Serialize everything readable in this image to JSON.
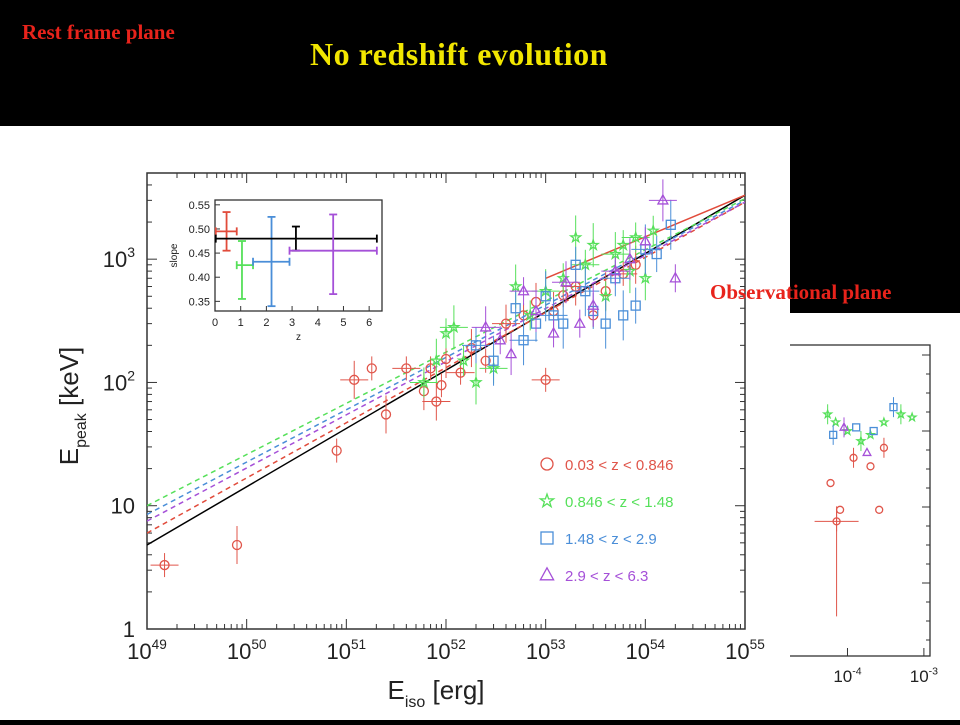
{
  "slide": {
    "title": "No redshift  evolution",
    "left_label": "Rest frame plane",
    "right_label": "Observational  plane",
    "colors": {
      "background": "#000000",
      "title": "#f2e600",
      "labels": "#e8231b"
    }
  },
  "chart_data": [
    {
      "type": "scatter",
      "scale": "log-log",
      "xlabel": "E_iso [erg]",
      "ylabel": "E_peak [keV]",
      "xlim": [
        1e+49,
        1e+55
      ],
      "ylim": [
        1,
        5000
      ],
      "x_ticks": [
        "10^49",
        "10^50",
        "10^51",
        "10^52",
        "10^53",
        "10^54",
        "10^55"
      ],
      "y_ticks": [
        "1",
        "10",
        "10^2",
        "10^3"
      ],
      "legend_position": "lower-right",
      "series": [
        {
          "name": "0.03 < z < 0.846",
          "marker": "circle",
          "color": "#e0554a",
          "points": [
            [
              1.5e+49,
              3.3
            ],
            [
              8e+49,
              4.8
            ],
            [
              8e+50,
              28
            ],
            [
              1.2e+51,
              105
            ],
            [
              1.8e+51,
              130
            ],
            [
              2.5e+51,
              55
            ],
            [
              4e+51,
              130
            ],
            [
              6e+51,
              85
            ],
            [
              7e+51,
              130
            ],
            [
              8e+51,
              70
            ],
            [
              9e+51,
              95
            ],
            [
              1e+52,
              155
            ],
            [
              1.4e+52,
              120
            ],
            [
              1.8e+52,
              190
            ],
            [
              2.5e+52,
              150
            ],
            [
              4e+52,
              300
            ],
            [
              6e+52,
              350
            ],
            [
              8e+52,
              450
            ],
            [
              1e+53,
              105
            ],
            [
              1.2e+53,
              380
            ],
            [
              1.5e+53,
              510
            ],
            [
              2e+53,
              600
            ],
            [
              3e+53,
              350
            ],
            [
              4e+53,
              550
            ],
            [
              6e+53,
              760
            ],
            [
              8e+53,
              900
            ]
          ]
        },
        {
          "name": "0.846 < z < 1.48",
          "marker": "star",
          "color": "#56e05a",
          "points": [
            [
              6e+51,
              100
            ],
            [
              8e+51,
              150
            ],
            [
              1e+52,
              250
            ],
            [
              1.2e+52,
              280
            ],
            [
              1.5e+52,
              150
            ],
            [
              2e+52,
              100
            ],
            [
              3e+52,
              130
            ],
            [
              5e+52,
              600
            ],
            [
              7e+52,
              350
            ],
            [
              1e+53,
              550
            ],
            [
              1.5e+53,
              700
            ],
            [
              2e+53,
              1500
            ],
            [
              2.5e+53,
              900
            ],
            [
              3e+53,
              1300
            ],
            [
              4e+53,
              500
            ],
            [
              5e+53,
              1100
            ],
            [
              6e+53,
              1300
            ],
            [
              7e+53,
              800
            ],
            [
              8e+53,
              1500
            ],
            [
              1e+54,
              700
            ],
            [
              1.2e+54,
              1700
            ]
          ]
        },
        {
          "name": "1.48 < z < 2.9",
          "marker": "square",
          "color": "#4a8ed8",
          "points": [
            [
              2e+52,
              200
            ],
            [
              3e+52,
              150
            ],
            [
              5e+52,
              400
            ],
            [
              6e+52,
              220
            ],
            [
              8e+52,
              300
            ],
            [
              1e+53,
              500
            ],
            [
              1.2e+53,
              350
            ],
            [
              1.5e+53,
              300
            ],
            [
              2e+53,
              900
            ],
            [
              2.5e+53,
              550
            ],
            [
              3e+53,
              380
            ],
            [
              4e+53,
              300
            ],
            [
              5e+53,
              700
            ],
            [
              6e+53,
              350
            ],
            [
              8e+53,
              420
            ],
            [
              1e+54,
              1200
            ],
            [
              1.3e+54,
              1100
            ],
            [
              1.8e+54,
              1900
            ]
          ]
        },
        {
          "name": "2.9 < z < 6.3",
          "marker": "triangle",
          "color": "#a550d8",
          "points": [
            [
              2.5e+52,
              280
            ],
            [
              3.5e+52,
              220
            ],
            [
              4.5e+52,
              170
            ],
            [
              6e+52,
              550
            ],
            [
              8e+52,
              380
            ],
            [
              1.2e+53,
              250
            ],
            [
              1.6e+53,
              650
            ],
            [
              2.2e+53,
              300
            ],
            [
              3e+53,
              420
            ],
            [
              5e+53,
              800
            ],
            [
              7e+53,
              1000
            ],
            [
              1e+54,
              1400
            ],
            [
              1.5e+54,
              3000
            ],
            [
              2e+54,
              700
            ]
          ]
        }
      ],
      "fit_lines": [
        {
          "color": "#000000",
          "style": "solid",
          "points": [
            [
              1e+49,
              4.8
            ],
            [
              1e+55,
              3300
            ]
          ]
        },
        {
          "color": "#e14b3b",
          "style": "solid",
          "points": [
            [
              1e+53,
              700
            ],
            [
              1e+55,
              3300
            ]
          ]
        },
        {
          "color": "#e14b3b",
          "style": "dashed",
          "points": [
            [
              1e+49,
              6.0
            ],
            [
              1e+55,
              2900
            ]
          ]
        },
        {
          "color": "#a550d8",
          "style": "dashed",
          "points": [
            [
              1e+49,
              7.5
            ],
            [
              1e+55,
              2900
            ]
          ]
        },
        {
          "color": "#4a8ed8",
          "style": "dashed",
          "points": [
            [
              1e+49,
              8.5
            ],
            [
              1e+55,
              3000
            ]
          ]
        },
        {
          "color": "#56e05a",
          "style": "dashed",
          "points": [
            [
              1e+49,
              10
            ],
            [
              1e+55,
              3100
            ]
          ]
        }
      ]
    },
    {
      "type": "scatter",
      "title": "inset",
      "xlabel": "z",
      "ylabel": "slope",
      "xlim": [
        0,
        6.5
      ],
      "ylim": [
        0.33,
        0.56
      ],
      "x_ticks": [
        "0",
        "1",
        "2",
        "3",
        "4",
        "5",
        "6"
      ],
      "y_ticks": [
        "0.35",
        "0.40",
        "0.45",
        "0.50",
        "0.55"
      ],
      "points": [
        {
          "color": "#e14b3b",
          "z": 0.45,
          "z_lo": 0.03,
          "z_hi": 0.846,
          "slope": 0.495,
          "lo": 0.455,
          "hi": 0.535
        },
        {
          "color": "#56e05a",
          "z": 1.05,
          "z_lo": 0.846,
          "z_hi": 1.48,
          "slope": 0.425,
          "lo": 0.355,
          "hi": 0.475
        },
        {
          "color": "#4a8ed8",
          "z": 2.2,
          "z_lo": 1.48,
          "z_hi": 2.9,
          "slope": 0.432,
          "lo": 0.34,
          "hi": 0.525
        },
        {
          "color": "#000000",
          "z": 3.15,
          "z_lo": 0.03,
          "z_hi": 6.3,
          "slope": 0.48,
          "lo": 0.455,
          "hi": 0.505
        },
        {
          "color": "#a550d8",
          "z": 4.6,
          "z_lo": 2.9,
          "z_hi": 6.3,
          "slope": 0.455,
          "lo": 0.365,
          "hi": 0.53
        }
      ]
    },
    {
      "type": "scatter",
      "title": "observational (partial)",
      "x_ticks": [
        "10^-4",
        "10^-3"
      ],
      "series": [
        {
          "name": "0.03 < z < 0.846",
          "color": "#e0554a",
          "points": [
            [
              7.2e-05,
              12
            ],
            [
              8e-05,
              14
            ],
            [
              6e-05,
              20
            ],
            [
              0.00012,
              28
            ],
            [
              0.0002,
              25
            ],
            [
              0.00026,
              14
            ],
            [
              0.0003,
              32
            ]
          ]
        },
        {
          "name": "0.846 < z < 1.48",
          "color": "#56e05a",
          "points": [
            [
              5.5e-05,
              50
            ],
            [
              7e-05,
              45
            ],
            [
              0.0001,
              40
            ],
            [
              0.00015,
              35
            ],
            [
              0.0002,
              38
            ],
            [
              0.0003,
              45
            ],
            [
              0.0005,
              50
            ],
            [
              0.0007,
              48
            ]
          ]
        },
        {
          "name": "1.48 < z < 2.9",
          "color": "#4a8ed8",
          "points": [
            [
              6.5e-05,
              38
            ],
            [
              0.00013,
              42
            ],
            [
              0.00022,
              40
            ],
            [
              0.0004,
              55
            ]
          ]
        },
        {
          "name": "2.9 < z < 6.3",
          "color": "#a550d8",
          "points": [
            [
              9e-05,
              42
            ],
            [
              0.00018,
              30
            ]
          ]
        }
      ]
    }
  ]
}
